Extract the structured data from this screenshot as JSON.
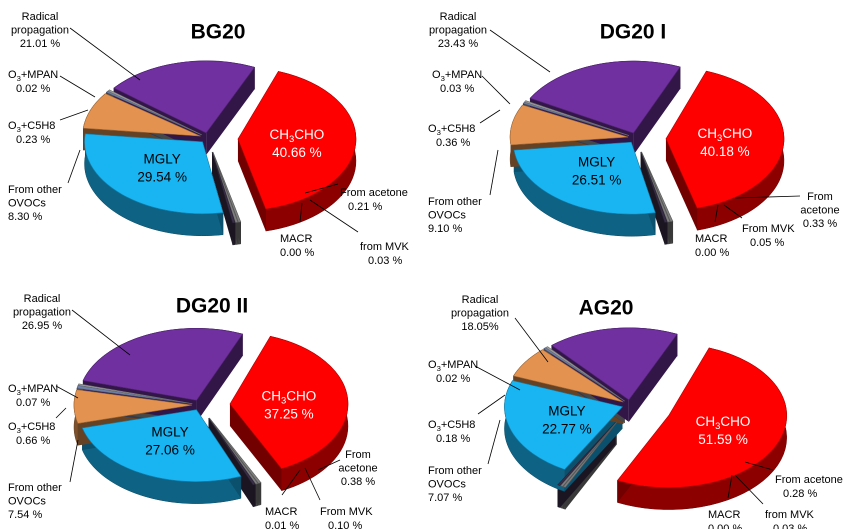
{
  "chart_data": [
    {
      "type": "pie",
      "title": "BG20",
      "slices": [
        {
          "label": "CH3CHO",
          "value": 40.66,
          "value_text": "40.66 %",
          "color": "#ff0000"
        },
        {
          "label": "From acetone",
          "value": 0.21,
          "value_text": "0.21 %",
          "color": "#7f7f7f"
        },
        {
          "label": "from MVK",
          "value": 0.03,
          "value_text": "0.03 %",
          "color": "#7f7f7f"
        },
        {
          "label": "MACR",
          "value": 0.0,
          "value_text": "0.00 %",
          "color": "#3a2f4a"
        },
        {
          "label": "MGLY",
          "value": 29.54,
          "value_text": "29.54 %",
          "color": "#19b4f2"
        },
        {
          "label": "From other OVOCs",
          "value": 8.3,
          "value_text": "8.30 %",
          "color": "#e3934f"
        },
        {
          "label": "O3+C5H8",
          "value": 0.23,
          "value_text": "0.23 %",
          "color": "#6e7fa8"
        },
        {
          "label": "O3+MPAN",
          "value": 0.02,
          "value_text": "0.02 %",
          "color": "#9e9e9e"
        },
        {
          "label": "Radical propagation",
          "value": 21.01,
          "value_text": "21.01 %",
          "color": "#7030a0"
        }
      ]
    },
    {
      "type": "pie",
      "title": "DG20 I",
      "slices": [
        {
          "label": "CH3CHO",
          "value": 40.18,
          "value_text": "40.18 %",
          "color": "#ff0000"
        },
        {
          "label": "From acetone",
          "value": 0.33,
          "value_text": "0.33 %",
          "color": "#7f7f7f"
        },
        {
          "label": "From MVK",
          "value": 0.05,
          "value_text": "0.05 %",
          "color": "#7f7f7f"
        },
        {
          "label": "MACR",
          "value": 0.0,
          "value_text": "0.00 %",
          "color": "#3a2f4a"
        },
        {
          "label": "MGLY",
          "value": 26.51,
          "value_text": "26.51 %",
          "color": "#19b4f2"
        },
        {
          "label": "From other OVOCs",
          "value": 9.1,
          "value_text": "9.10 %",
          "color": "#e3934f"
        },
        {
          "label": "O3+C5H8",
          "value": 0.36,
          "value_text": "0.36 %",
          "color": "#6e7fa8"
        },
        {
          "label": "O3+MPAN",
          "value": 0.03,
          "value_text": "0.03 %",
          "color": "#9e9e9e"
        },
        {
          "label": "Radical propagation",
          "value": 23.43,
          "value_text": "23.43 %",
          "color": "#7030a0"
        }
      ]
    },
    {
      "type": "pie",
      "title": "DG20 II",
      "slices": [
        {
          "label": "CH3CHO",
          "value": 37.25,
          "value_text": "37.25 %",
          "color": "#ff0000"
        },
        {
          "label": "From acetone",
          "value": 0.38,
          "value_text": "0.38 %",
          "color": "#7f7f7f"
        },
        {
          "label": "From MVK",
          "value": 0.1,
          "value_text": "0.10 %",
          "color": "#7f7f7f"
        },
        {
          "label": "MACR",
          "value": 0.01,
          "value_text": "0.01 %",
          "color": "#3a2f4a"
        },
        {
          "label": "MGLY",
          "value": 27.06,
          "value_text": "27.06 %",
          "color": "#19b4f2"
        },
        {
          "label": "From other OVOCs",
          "value": 7.54,
          "value_text": "7.54 %",
          "color": "#e3934f"
        },
        {
          "label": "O3+C5H8",
          "value": 0.66,
          "value_text": "0.66 %",
          "color": "#6e7fa8"
        },
        {
          "label": "O3+MPAN",
          "value": 0.07,
          "value_text": "0.07 %",
          "color": "#9e9e9e"
        },
        {
          "label": "Radical propagation",
          "value": 26.95,
          "value_text": "26.95 %",
          "color": "#7030a0"
        }
      ]
    },
    {
      "type": "pie",
      "title": "AG20",
      "slices": [
        {
          "label": "CH3CHO",
          "value": 51.59,
          "value_text": "51.59 %",
          "color": "#ff0000"
        },
        {
          "label": "From acetone",
          "value": 0.28,
          "value_text": "0.28 %",
          "color": "#7f7f7f"
        },
        {
          "label": "from MVK",
          "value": 0.03,
          "value_text": "0.03 %",
          "color": "#7f7f7f"
        },
        {
          "label": "MACR",
          "value": 0.0,
          "value_text": "0.00 %",
          "color": "#3a2f4a"
        },
        {
          "label": "MGLY",
          "value": 22.77,
          "value_text": "22.77 %",
          "color": "#19b4f2"
        },
        {
          "label": "From other OVOCs",
          "value": 7.07,
          "value_text": "7.07 %",
          "color": "#e3934f"
        },
        {
          "label": "O3+C5H8",
          "value": 0.18,
          "value_text": "0.18 %",
          "color": "#6e7fa8"
        },
        {
          "label": "O3+MPAN",
          "value": 0.02,
          "value_text": "0.02 %",
          "color": "#9e9e9e"
        },
        {
          "label": "Radical propagation",
          "value": 18.05,
          "value_text": "18.05%",
          "color": "#7030a0"
        }
      ]
    }
  ]
}
